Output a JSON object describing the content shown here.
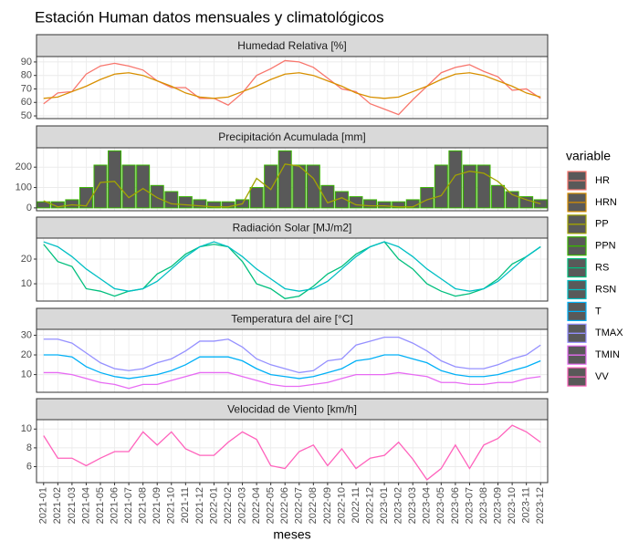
{
  "title": "Estación Human datos mensuales y climatológicos",
  "legend_title": "variable",
  "chart_data": [
    {
      "type": "line",
      "title": "Humedad Relativa [%]",
      "ylim": [
        48,
        94
      ],
      "yticks": [
        50,
        60,
        70,
        80,
        90
      ],
      "grid": true,
      "series": [
        {
          "name": "HR",
          "color": "#F8766D",
          "values": [
            59,
            67,
            68,
            81,
            87,
            89,
            87,
            84,
            76,
            71,
            71,
            63,
            63,
            58,
            67,
            80,
            85,
            91,
            90,
            86,
            78,
            70,
            68,
            59,
            55,
            51,
            62,
            72,
            82,
            86,
            88,
            83,
            79,
            69,
            70,
            63
          ]
        },
        {
          "name": "HRN",
          "color": "#D89000",
          "values": [
            63,
            64,
            68,
            72,
            77,
            81,
            82,
            80,
            76,
            72,
            67,
            64,
            63,
            64,
            68,
            72,
            77,
            81,
            82,
            80,
            76,
            72,
            67,
            64,
            63,
            64,
            68,
            72,
            77,
            81,
            82,
            80,
            76,
            72,
            67,
            64
          ]
        }
      ]
    },
    {
      "type": "line",
      "title": "Precipitación Acumulada [mm]",
      "ylim": [
        -14,
        295
      ],
      "yticks": [
        0,
        100,
        200
      ],
      "grid": true,
      "series": [
        {
          "name": "PP",
          "color": "#A3A500",
          "values": [
            35,
            5,
            15,
            10,
            125,
            130,
            50,
            95,
            50,
            20,
            15,
            10,
            5,
            5,
            20,
            145,
            90,
            215,
            205,
            145,
            25,
            50,
            15,
            10,
            10,
            5,
            5,
            40,
            60,
            160,
            180,
            170,
            130,
            65,
            40,
            20
          ]
        },
        {
          "name": "PPN",
          "color": "#39B600",
          "type": "bar",
          "values": [
            30,
            30,
            40,
            100,
            210,
            280,
            210,
            210,
            110,
            80,
            55,
            40,
            30,
            30,
            40,
            100,
            210,
            280,
            210,
            210,
            110,
            80,
            55,
            40,
            30,
            30,
            40,
            100,
            210,
            280,
            210,
            210,
            110,
            80,
            55,
            40
          ]
        }
      ]
    },
    {
      "type": "line",
      "title": "Radiación Solar [MJ/m2]",
      "ylim": [
        3,
        28.5
      ],
      "yticks": [
        10,
        20
      ],
      "grid": true,
      "series": [
        {
          "name": "RS",
          "color": "#00BF7D",
          "values": [
            26,
            19,
            17,
            8,
            7,
            5,
            7,
            8,
            14,
            17,
            22,
            25,
            26,
            25,
            19,
            10,
            8,
            4,
            5,
            9,
            14,
            17,
            22,
            25,
            27,
            20,
            16,
            10,
            7,
            5,
            6,
            8,
            12,
            18,
            21,
            25
          ]
        },
        {
          "name": "RSN",
          "color": "#00BFC4",
          "values": [
            27,
            25,
            21,
            16,
            12,
            8,
            7,
            8,
            11,
            16,
            21,
            25,
            27,
            25,
            21,
            16,
            12,
            8,
            7,
            8,
            11,
            16,
            21,
            25,
            27,
            25,
            21,
            16,
            12,
            8,
            7,
            8,
            11,
            16,
            21,
            25
          ]
        }
      ]
    },
    {
      "type": "line",
      "title": "Temperatura del aire [°C]",
      "ylim": [
        1,
        33
      ],
      "yticks": [
        10,
        20,
        30
      ],
      "grid": true,
      "series": [
        {
          "name": "T",
          "color": "#00B0F6",
          "values": [
            20,
            20,
            19,
            14,
            11,
            9,
            8,
            9,
            10,
            12,
            15,
            19,
            19,
            19,
            17,
            13,
            10,
            9,
            8,
            9,
            11,
            13,
            17,
            18,
            20,
            20,
            18,
            16,
            12,
            10,
            9,
            9,
            10,
            12,
            14,
            17
          ]
        },
        {
          "name": "TMAX",
          "color": "#9590FF",
          "values": [
            28,
            28,
            26,
            21,
            16,
            13,
            12,
            13,
            16,
            18,
            22,
            27,
            27,
            28,
            24,
            18,
            15,
            13,
            11,
            12,
            17,
            18,
            25,
            27,
            29,
            29,
            26,
            22,
            17,
            14,
            13,
            13,
            15,
            18,
            20,
            25
          ]
        },
        {
          "name": "TMIN",
          "color": "#E76BF3",
          "values": [
            11,
            11,
            10,
            8,
            6,
            5,
            3,
            5,
            5,
            7,
            9,
            11,
            11,
            11,
            9,
            7,
            5,
            4,
            4,
            5,
            6,
            8,
            10,
            10,
            10,
            11,
            10,
            9,
            6,
            6,
            5,
            5,
            6,
            6,
            8,
            9
          ]
        }
      ]
    },
    {
      "type": "line",
      "title": "Velocidad de Viento [km/h]",
      "ylim": [
        4.3,
        11
      ],
      "yticks": [
        6,
        8,
        10
      ],
      "grid": true,
      "xlabel": "meses",
      "categories": [
        "2021-01",
        "2021-02",
        "2021-03",
        "2021-04",
        "2021-05",
        "2021-06",
        "2021-07",
        "2021-08",
        "2021-09",
        "2021-10",
        "2021-11",
        "2021-12",
        "2022-01",
        "2022-02",
        "2022-03",
        "2022-04",
        "2022-05",
        "2022-06",
        "2022-07",
        "2022-08",
        "2022-09",
        "2022-10",
        "2022-11",
        "2022-12",
        "2023-01",
        "2023-02",
        "2023-03",
        "2023-04",
        "2023-05",
        "2023-06",
        "2023-07",
        "2023-08",
        "2023-09",
        "2023-10",
        "2023-11",
        "2023-12"
      ],
      "series": [
        {
          "name": "VV",
          "color": "#FF62BC",
          "values": [
            9.3,
            6.9,
            6.9,
            6.1,
            6.9,
            7.6,
            7.6,
            9.7,
            8.3,
            9.7,
            7.9,
            7.2,
            7.2,
            8.6,
            9.7,
            8.9,
            6.1,
            5.8,
            7.6,
            8.3,
            6.1,
            7.9,
            5.8,
            6.9,
            7.2,
            8.6,
            6.8,
            4.6,
            5.8,
            8.3,
            5.8,
            8.3,
            9.0,
            10.4,
            9.7,
            8.6
          ]
        }
      ]
    }
  ]
}
